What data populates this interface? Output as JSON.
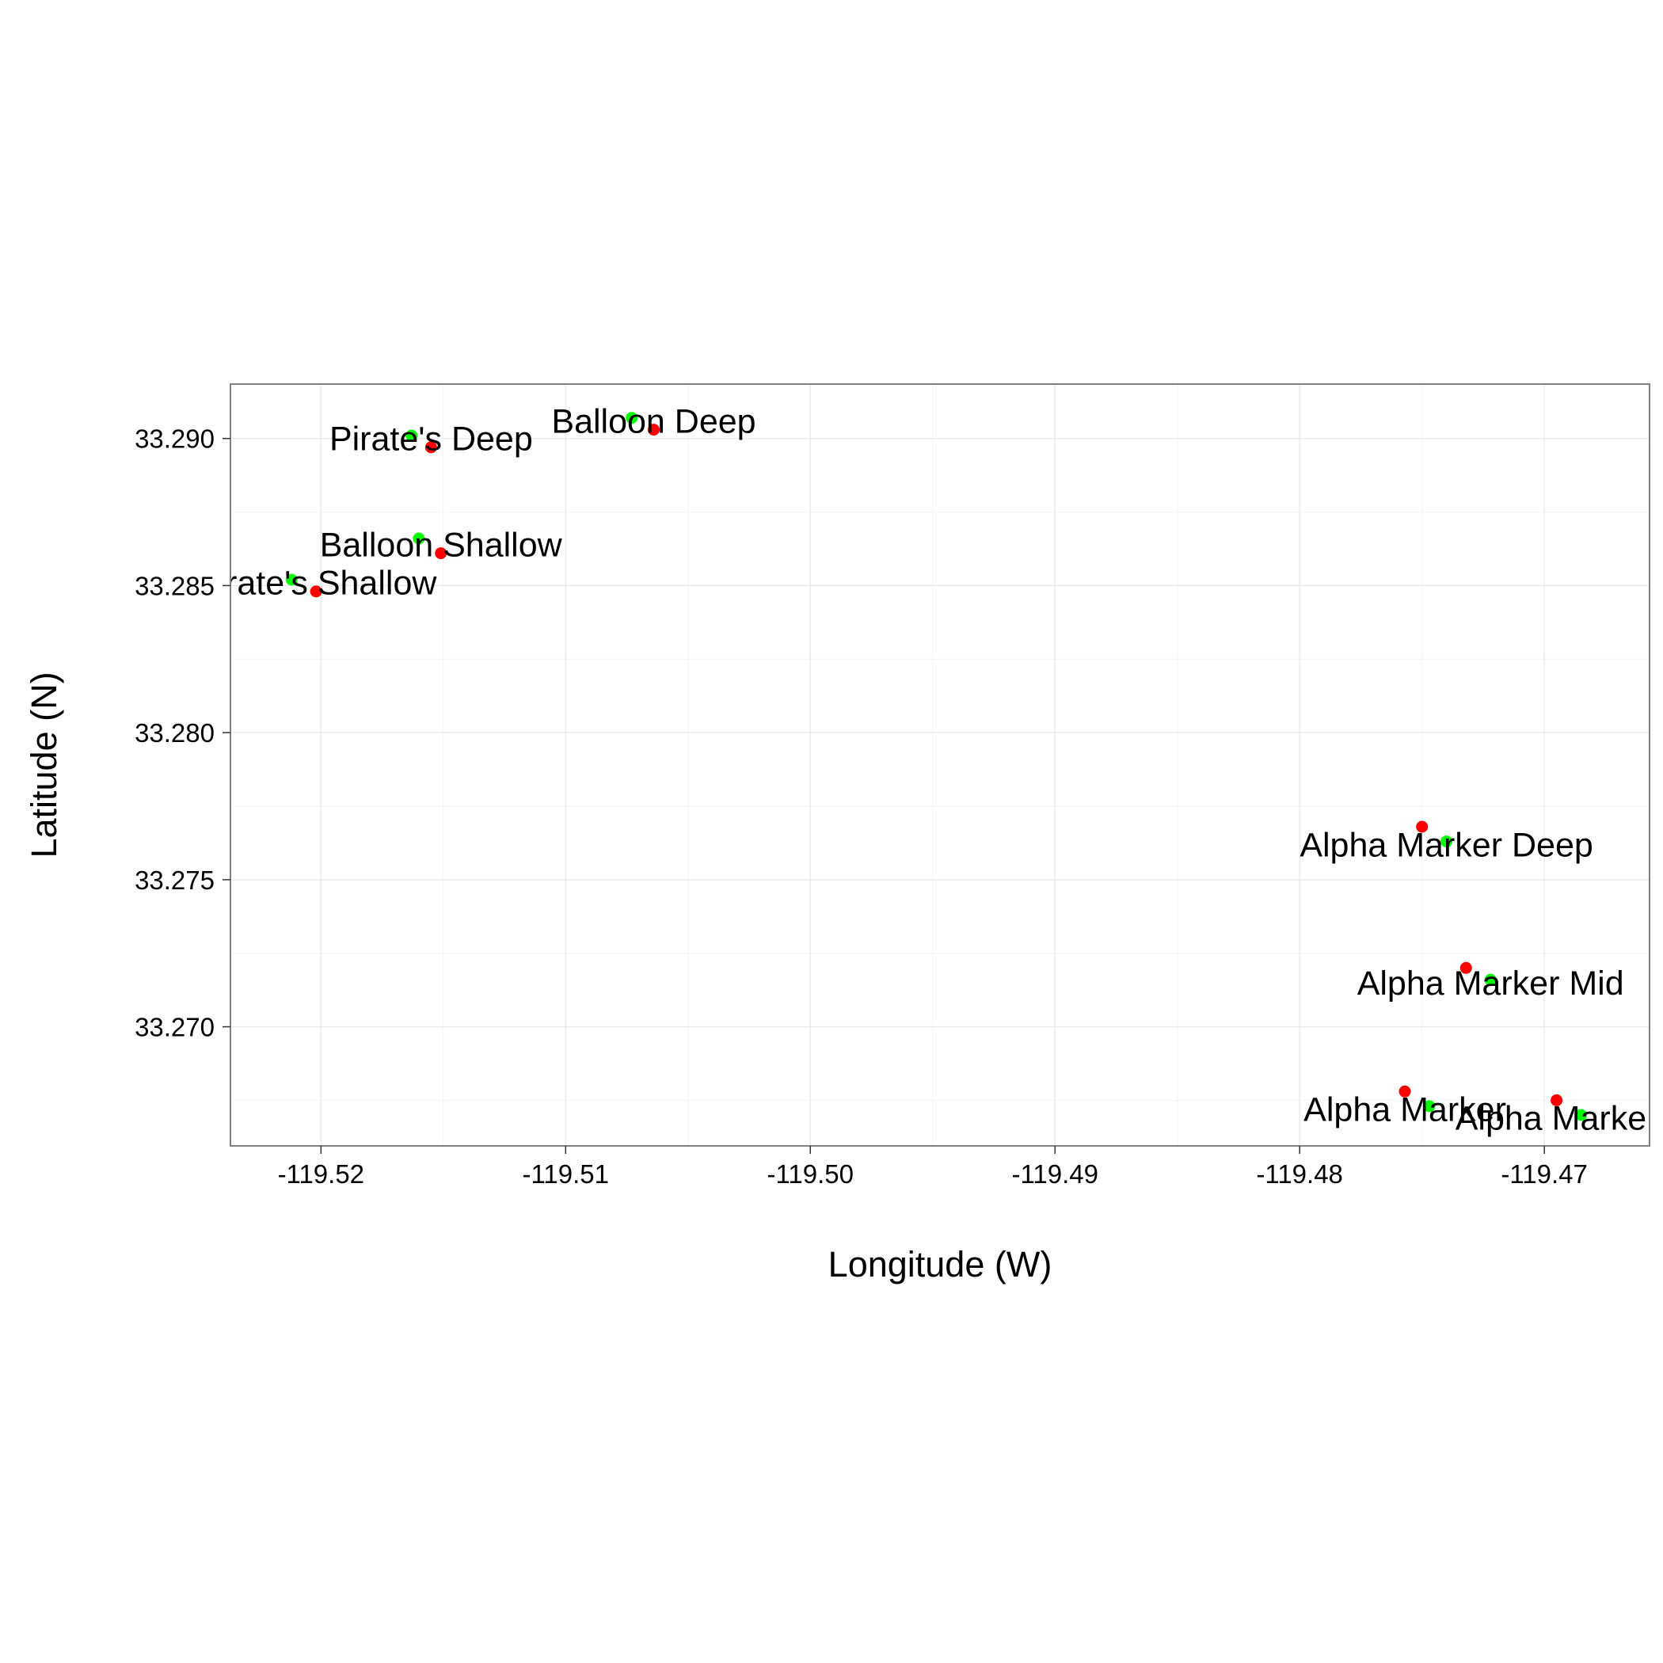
{
  "chart_data": {
    "type": "scatter",
    "title": "",
    "xlabel": "Longitude (W)",
    "ylabel": "Latitude (N)",
    "xlim": [
      -119.5237,
      -119.4657
    ],
    "ylim": [
      33.26595,
      33.29185
    ],
    "x_ticks": [
      -119.52,
      -119.51,
      -119.5,
      -119.49,
      -119.48,
      -119.47
    ],
    "x_tick_labels": [
      "-119.52",
      "-119.51",
      "-119.50",
      "-119.49",
      "-119.48",
      "-119.47"
    ],
    "y_ticks": [
      33.27,
      33.275,
      33.28,
      33.285,
      33.29
    ],
    "y_tick_labels": [
      "33.270",
      "33.275",
      "33.280",
      "33.285",
      "33.290"
    ],
    "grid": true,
    "legend": "none",
    "colors": {
      "green": "#00ff00",
      "red": "#ff0000"
    },
    "series": [
      {
        "color": "#00ff00",
        "points": [
          {
            "x": -119.5163,
            "y": 33.2901
          },
          {
            "x": -119.5073,
            "y": 33.2907
          },
          {
            "x": -119.516,
            "y": 33.2866
          },
          {
            "x": -119.5212,
            "y": 33.2852
          },
          {
            "x": -119.474,
            "y": 33.2763
          },
          {
            "x": -119.4722,
            "y": 33.2716
          },
          {
            "x": -119.4747,
            "y": 33.2673
          },
          {
            "x": -119.4685,
            "y": 33.267
          }
        ]
      },
      {
        "color": "#ff0000",
        "points": [
          {
            "x": -119.5155,
            "y": 33.2897
          },
          {
            "x": -119.5064,
            "y": 33.2903
          },
          {
            "x": -119.5151,
            "y": 33.2861
          },
          {
            "x": -119.5202,
            "y": 33.2848
          },
          {
            "x": -119.475,
            "y": 33.2768
          },
          {
            "x": -119.4732,
            "y": 33.272
          },
          {
            "x": -119.4757,
            "y": 33.2678
          },
          {
            "x": -119.4695,
            "y": 33.2675
          }
        ]
      }
    ],
    "annotations": [
      {
        "text": "Pirate's Deep",
        "x": -119.5155,
        "y": 33.29
      },
      {
        "text": "Balloon Deep",
        "x": -119.5064,
        "y": 33.2906
      },
      {
        "text": "Balloon Shallow",
        "x": -119.5151,
        "y": 33.2864
      },
      {
        "text": "Pirate's Shallow",
        "x": -119.5202,
        "y": 33.2851
      },
      {
        "text": "Alpha Marker Deep",
        "x": -119.474,
        "y": 33.2762
      },
      {
        "text": "Alpha Marker Mid",
        "x": -119.4722,
        "y": 33.2715
      },
      {
        "text": "Alpha Marker",
        "x": -119.4757,
        "y": 33.2672
      },
      {
        "text": "Alpha Marker",
        "x": -119.4695,
        "y": 33.2669
      }
    ]
  }
}
